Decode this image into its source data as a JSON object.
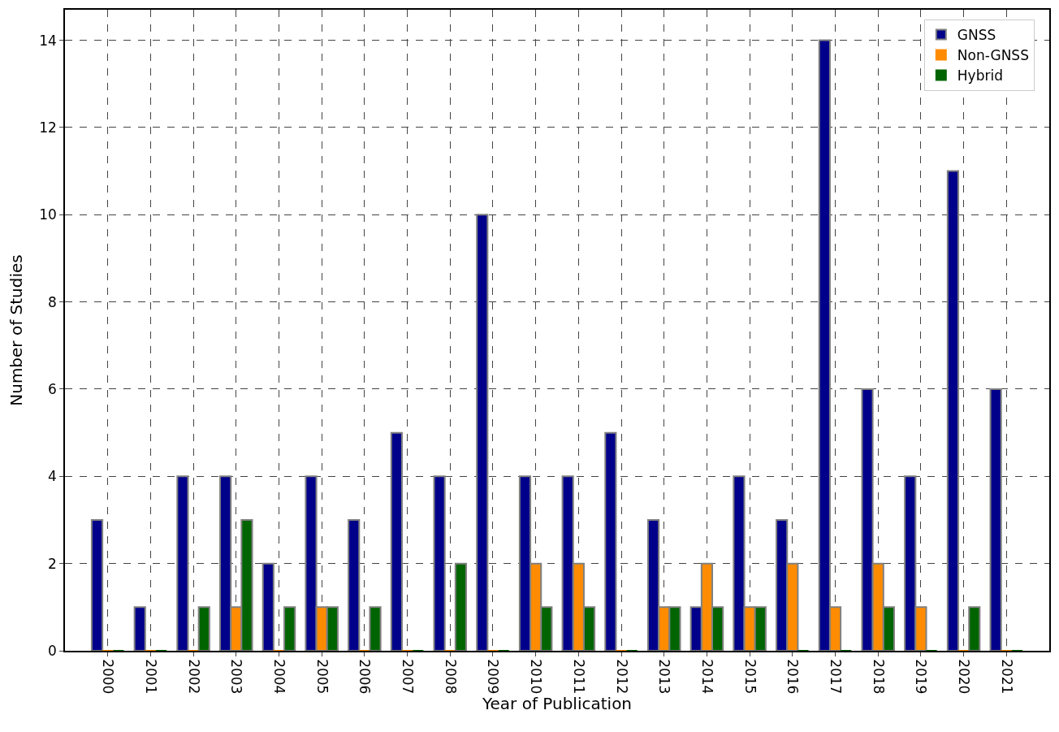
{
  "chart_data": {
    "type": "bar",
    "xlabel": "Year of Publication",
    "ylabel": "Number of Studies",
    "categories": [
      "2000",
      "2001",
      "2002",
      "2003",
      "2004",
      "2005",
      "2006",
      "2007",
      "2008",
      "2009",
      "2010",
      "2011",
      "2012",
      "2013",
      "2014",
      "2015",
      "2016",
      "2017",
      "2018",
      "2019",
      "2020",
      "2021"
    ],
    "series": [
      {
        "name": "GNSS",
        "color": "#00008b",
        "values": [
          3,
          1,
          4,
          4,
          2,
          4,
          3,
          5,
          4,
          10,
          4,
          4,
          5,
          3,
          1,
          4,
          3,
          14,
          6,
          4,
          11,
          6
        ]
      },
      {
        "name": "Non-GNSS",
        "color": "#ff8c00",
        "values": [
          0,
          0,
          0,
          1,
          0,
          1,
          0,
          0,
          0,
          0,
          2,
          2,
          0,
          1,
          2,
          1,
          2,
          1,
          2,
          1,
          0,
          0
        ]
      },
      {
        "name": "Hybrid",
        "color": "#006400",
        "values": [
          0,
          0,
          1,
          3,
          1,
          1,
          1,
          0,
          2,
          0,
          1,
          1,
          0,
          1,
          1,
          1,
          0,
          0,
          1,
          0,
          1,
          0
        ]
      }
    ],
    "ylim": [
      0,
      14.7
    ],
    "yticks": [
      0,
      2,
      4,
      6,
      8,
      10,
      12,
      14
    ],
    "grid": true,
    "legend": "top right"
  }
}
